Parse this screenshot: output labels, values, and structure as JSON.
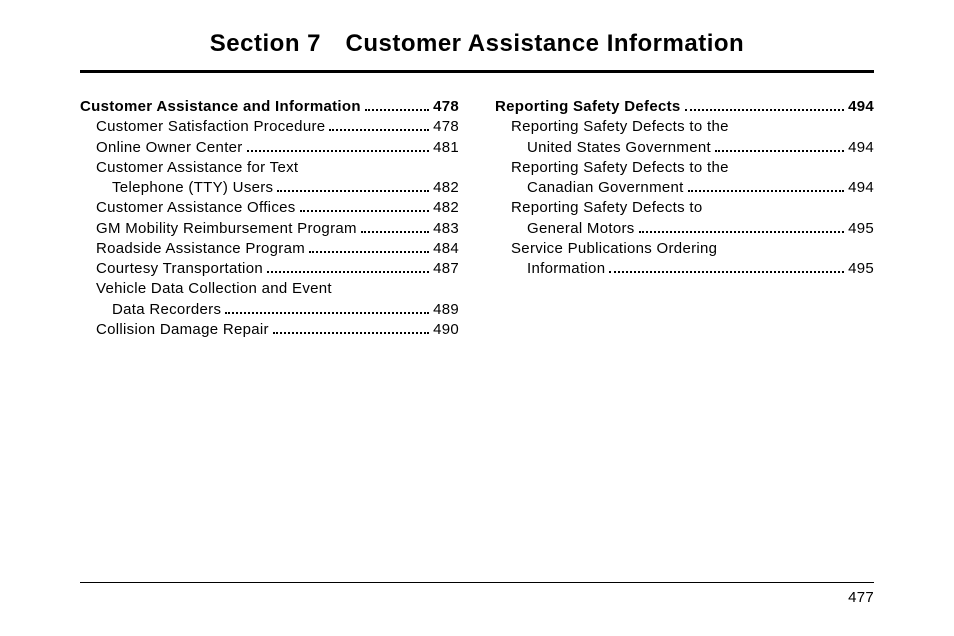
{
  "title": "Section 7 Customer Assistance Information",
  "page_number": "477",
  "left": [
    {
      "type": "entry",
      "bold": true,
      "indent": 0,
      "label": "Customer Assistance and Information",
      "page": "478"
    },
    {
      "type": "entry",
      "bold": false,
      "indent": 1,
      "label": "Customer Satisfaction Procedure",
      "page": "478"
    },
    {
      "type": "entry",
      "bold": false,
      "indent": 1,
      "label": "Online Owner Center",
      "page": "481"
    },
    {
      "type": "text",
      "indent": 1,
      "label": "Customer Assistance for Text"
    },
    {
      "type": "entry",
      "bold": false,
      "indent": 2,
      "label": "Telephone (TTY) Users",
      "page": "482"
    },
    {
      "type": "entry",
      "bold": false,
      "indent": 1,
      "label": "Customer Assistance Offices",
      "page": "482"
    },
    {
      "type": "entry",
      "bold": false,
      "indent": 1,
      "label": "GM Mobility Reimbursement Program",
      "page": "483"
    },
    {
      "type": "entry",
      "bold": false,
      "indent": 1,
      "label": "Roadside Assistance Program",
      "page": "484"
    },
    {
      "type": "entry",
      "bold": false,
      "indent": 1,
      "label": "Courtesy Transportation",
      "page": "487"
    },
    {
      "type": "text",
      "indent": 1,
      "label": "Vehicle Data Collection and Event"
    },
    {
      "type": "entry",
      "bold": false,
      "indent": 2,
      "label": "Data Recorders",
      "page": "489"
    },
    {
      "type": "entry",
      "bold": false,
      "indent": 1,
      "label": "Collision Damage Repair",
      "page": "490"
    }
  ],
  "right": [
    {
      "type": "entry",
      "bold": true,
      "indent": 0,
      "label": "Reporting Safety Defects",
      "page": "494"
    },
    {
      "type": "text",
      "indent": 1,
      "label": "Reporting Safety Defects to the"
    },
    {
      "type": "entry",
      "bold": false,
      "indent": 2,
      "label": "United States Government",
      "page": "494"
    },
    {
      "type": "text",
      "indent": 1,
      "label": "Reporting Safety Defects to the"
    },
    {
      "type": "entry",
      "bold": false,
      "indent": 2,
      "label": "Canadian Government",
      "page": "494"
    },
    {
      "type": "text",
      "indent": 1,
      "label": "Reporting Safety Defects to"
    },
    {
      "type": "entry",
      "bold": false,
      "indent": 2,
      "label": "General Motors",
      "page": "495"
    },
    {
      "type": "text",
      "indent": 1,
      "label": "Service Publications Ordering"
    },
    {
      "type": "entry",
      "bold": false,
      "indent": 2,
      "label": "Information",
      "page": "495"
    }
  ]
}
